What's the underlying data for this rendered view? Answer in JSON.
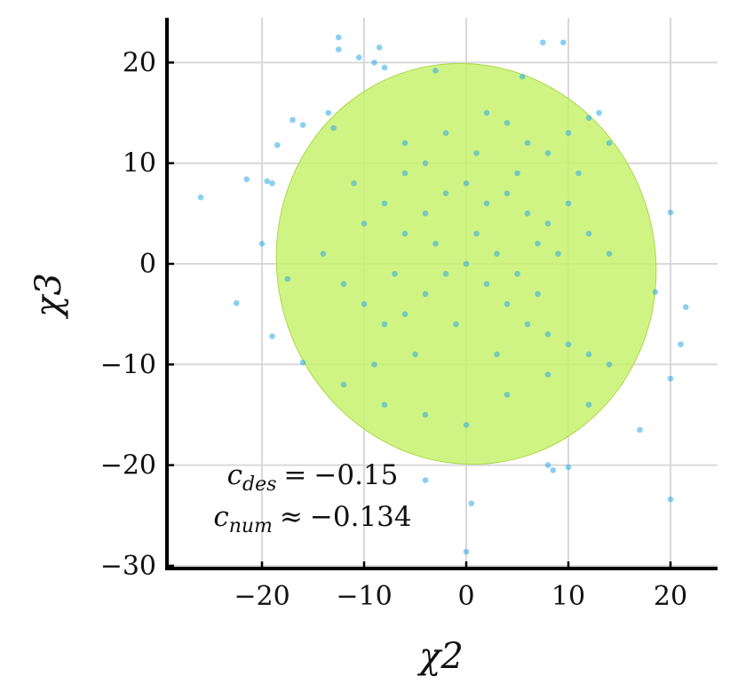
{
  "chart_data": {
    "type": "scatter",
    "title": "",
    "xlabel": "χ2",
    "ylabel": "χ3",
    "xlim": [
      -29,
      25
    ],
    "ylim": [
      -30,
      24
    ],
    "xticks": [
      -20,
      -10,
      0,
      10,
      20
    ],
    "yticks": [
      -30,
      -20,
      -10,
      0,
      10,
      20
    ],
    "xtick_labels": [
      "−20",
      "−10",
      "0",
      "10",
      "20"
    ],
    "ytick_labels": [
      "−30",
      "−20",
      "−10",
      "0",
      "10",
      "20"
    ],
    "grid": true,
    "point_color": "#29a8e8",
    "ellipse_color": "#c8f26e",
    "ellipse": {
      "center": [
        0,
        0
      ],
      "semi_axis_x": 18.5,
      "semi_axis_y": 20,
      "correlation": -0.15
    },
    "series": [
      {
        "points": [
          [
            -12.5,
            22.5
          ],
          [
            -12.5,
            21.3
          ],
          [
            -8.5,
            21.5
          ],
          [
            -10.5,
            20.5
          ],
          [
            -9,
            20
          ],
          [
            -8,
            19.5
          ],
          [
            -3,
            19.2
          ],
          [
            7.5,
            22
          ],
          [
            9.5,
            22
          ],
          [
            5.5,
            18.6
          ],
          [
            -26,
            6.6
          ],
          [
            -21.5,
            8.4
          ],
          [
            -19.5,
            8.2
          ],
          [
            -19,
            8
          ],
          [
            -17,
            14.3
          ],
          [
            -16,
            13.8
          ],
          [
            -18.5,
            11.8
          ],
          [
            -20,
            2
          ],
          [
            -22.5,
            -3.9
          ],
          [
            -19,
            -7.2
          ],
          [
            -16,
            -9.8
          ],
          [
            -17.5,
            -1.5
          ],
          [
            20,
            5.1
          ],
          [
            21.5,
            -4.3
          ],
          [
            21,
            -8
          ],
          [
            20,
            -11.4
          ],
          [
            17,
            -16.5
          ],
          [
            20,
            -23.4
          ],
          [
            0.5,
            -23.8
          ],
          [
            0,
            -28.6
          ],
          [
            -4,
            -21.5
          ],
          [
            8,
            -20
          ],
          [
            10,
            -20.2
          ],
          [
            8.5,
            -20.5
          ],
          [
            12,
            14.5
          ],
          [
            13,
            15
          ],
          [
            14,
            12
          ],
          [
            18.5,
            -2.8
          ],
          [
            -13,
            13.5
          ],
          [
            -13.5,
            15
          ],
          [
            -4,
            10
          ],
          [
            -6,
            12
          ],
          [
            2,
            15
          ],
          [
            4,
            14
          ],
          [
            6,
            12
          ],
          [
            8,
            11
          ],
          [
            10,
            13
          ],
          [
            -8,
            6
          ],
          [
            -10,
            4
          ],
          [
            -6,
            3
          ],
          [
            -4,
            5
          ],
          [
            -2,
            7
          ],
          [
            0,
            8
          ],
          [
            2,
            6
          ],
          [
            4,
            7
          ],
          [
            6,
            5
          ],
          [
            8,
            4
          ],
          [
            10,
            6
          ],
          [
            12,
            3
          ],
          [
            14,
            1
          ],
          [
            -14,
            1
          ],
          [
            -12,
            -2
          ],
          [
            -10,
            -4
          ],
          [
            -8,
            -6
          ],
          [
            -6,
            -5
          ],
          [
            -4,
            -3
          ],
          [
            -2,
            -1
          ],
          [
            0,
            0
          ],
          [
            2,
            -2
          ],
          [
            4,
            -4
          ],
          [
            6,
            -6
          ],
          [
            8,
            -7
          ],
          [
            10,
            -8
          ],
          [
            12,
            -9
          ],
          [
            14,
            -10
          ],
          [
            -12,
            -12
          ],
          [
            -8,
            -14
          ],
          [
            -4,
            -15
          ],
          [
            0,
            -16
          ],
          [
            4,
            -13
          ],
          [
            8,
            -11
          ],
          [
            12,
            -14
          ],
          [
            -6,
            9
          ],
          [
            -3,
            2
          ],
          [
            1,
            3
          ],
          [
            3,
            1
          ],
          [
            5,
            -1
          ],
          [
            -1,
            -6
          ],
          [
            -5,
            -9
          ],
          [
            3,
            -9
          ],
          [
            7,
            -3
          ],
          [
            9,
            1
          ],
          [
            11,
            9
          ],
          [
            -11,
            8
          ],
          [
            -9,
            -10
          ],
          [
            5,
            9
          ],
          [
            -2,
            13
          ],
          [
            1,
            11
          ],
          [
            -7,
            -1
          ],
          [
            7,
            2
          ]
        ]
      }
    ],
    "annotations": [
      {
        "symbol": "c",
        "subscript": "des",
        "relation": "=",
        "value": "−0.15"
      },
      {
        "symbol": "c",
        "subscript": "num",
        "relation": "≈",
        "value": "−0.134"
      }
    ]
  }
}
